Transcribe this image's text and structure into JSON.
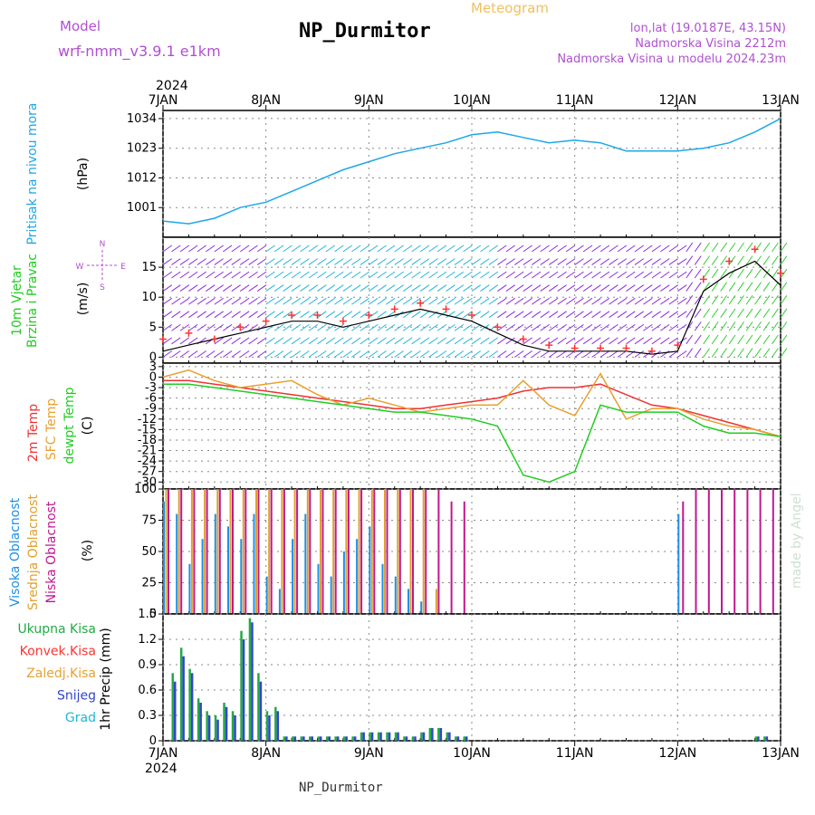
{
  "header": {
    "model_label": "Model",
    "model_name": "wrf-nmm_v3.9.1  e1km",
    "station": "NP_Durmitor",
    "product": "Meteogram",
    "coords": "lon,lat (19.0187E, 43.15N)",
    "elevation": "Nadmorska Visina 2212m",
    "model_elevation": "Nadmorska Visina u modelu 2024.23m",
    "footer_station": "NP_Durmitor",
    "watermark": "made by Angel"
  },
  "axes": {
    "year": "2024",
    "date_ticks": [
      "7JAN",
      "8JAN",
      "9JAN",
      "10JAN",
      "11JAN",
      "12JAN",
      "13JAN"
    ]
  },
  "colors": {
    "pressure": "#1ea7e6",
    "temp_2m": "#ee3333",
    "temp_sfc": "#e8a030",
    "dewpoint": "#22cc22",
    "cloud_high": "#1e90e6",
    "cloud_mid": "#e0a030",
    "cloud_low": "#c01890",
    "precip_total": "#22aa44",
    "precip_snow": "#3344cc",
    "label_purple": "#b050d0",
    "label_orange": "#f0c060",
    "gust_marker": "#ff3333"
  },
  "chart_data": [
    {
      "type": "line",
      "ylabel": [
        "Pritisak na nivou mora",
        "(hPa)"
      ],
      "yticks": [
        "1001",
        "1012",
        "1023",
        "1034"
      ],
      "ylim": [
        990,
        1037
      ],
      "series": [
        {
          "name": "Pritisak na nivou mora",
          "x": [
            0,
            6,
            12,
            18,
            24,
            30,
            36,
            42,
            48,
            54,
            60,
            66,
            72,
            78,
            84,
            90,
            96,
            102,
            108,
            114,
            120,
            126,
            132,
            138,
            144
          ],
          "values": [
            996,
            995,
            997,
            1001,
            1003,
            1007,
            1011,
            1015,
            1018,
            1021,
            1023,
            1025,
            1028,
            1029,
            1027,
            1025,
            1026,
            1025,
            1022,
            1022,
            1022,
            1023,
            1025,
            1029,
            1034
          ]
        }
      ]
    },
    {
      "type": "scatter",
      "title": "10m Vjetar Brzina i Pravac",
      "ylabel": "(m/s)",
      "yticks": [
        "0",
        "5",
        "10",
        "15"
      ],
      "ylim": [
        -1,
        20
      ],
      "compass": [
        "N",
        "E",
        "S",
        "W"
      ],
      "series": [
        {
          "name": "wind speed",
          "x": [
            0,
            6,
            12,
            18,
            24,
            30,
            36,
            42,
            48,
            54,
            60,
            66,
            72,
            78,
            84,
            90,
            96,
            102,
            108,
            114,
            120,
            126,
            132,
            138,
            144
          ],
          "values": [
            1,
            2,
            3,
            4,
            5,
            6,
            6,
            5,
            6,
            7,
            8,
            7,
            6,
            4,
            2,
            1,
            1,
            1,
            1,
            0.5,
            1,
            11,
            14,
            16,
            12
          ]
        },
        {
          "name": "gust",
          "x": [
            0,
            6,
            12,
            18,
            24,
            30,
            36,
            42,
            48,
            54,
            60,
            66,
            72,
            78,
            84,
            90,
            96,
            102,
            108,
            114,
            120,
            126,
            132,
            138,
            144
          ],
          "values": [
            3,
            4,
            3,
            5,
            6,
            7,
            7,
            6,
            7,
            8,
            9,
            8,
            7,
            5,
            3,
            2,
            1.5,
            1.5,
            1.5,
            1,
            2,
            13,
            16,
            18,
            14
          ]
        }
      ]
    },
    {
      "type": "line",
      "ylabel": [
        "2m Temp",
        "SFC Temp",
        "dewpt Temp",
        "(C)"
      ],
      "yticks": [
        "3",
        "0",
        "-3",
        "-6",
        "-9",
        "-12",
        "-15",
        "-18",
        "-21",
        "-24",
        "-27",
        "-30"
      ],
      "ylim": [
        -32,
        4
      ],
      "series": [
        {
          "name": "2m Temp",
          "x": [
            0,
            6,
            12,
            18,
            24,
            30,
            36,
            42,
            48,
            54,
            60,
            66,
            72,
            78,
            84,
            90,
            96,
            102,
            108,
            114,
            120,
            126,
            132,
            138,
            144
          ],
          "values": [
            -1,
            -1,
            -2,
            -3,
            -4,
            -5,
            -6,
            -7,
            -8,
            -9,
            -9,
            -8,
            -7,
            -6,
            -4,
            -3,
            -3,
            -2,
            -5,
            -8,
            -9,
            -11,
            -13,
            -15,
            -17
          ]
        },
        {
          "name": "SFC Temp",
          "x": [
            0,
            6,
            12,
            18,
            24,
            30,
            36,
            42,
            48,
            54,
            60,
            66,
            72,
            78,
            84,
            90,
            96,
            102,
            108,
            114,
            120,
            126,
            132,
            138,
            144
          ],
          "values": [
            0,
            2,
            -1,
            -3,
            -2,
            -1,
            -5,
            -8,
            -6,
            -8,
            -10,
            -9,
            -8,
            -8,
            -1,
            -8,
            -11,
            1,
            -12,
            -9,
            -9,
            -12,
            -14,
            -15,
            -17
          ]
        },
        {
          "name": "dewpt Temp",
          "x": [
            0,
            6,
            12,
            18,
            24,
            30,
            36,
            42,
            48,
            54,
            60,
            66,
            72,
            78,
            84,
            90,
            96,
            102,
            108,
            114,
            120,
            126,
            132,
            138,
            144
          ],
          "values": [
            -2,
            -2,
            -3,
            -4,
            -5,
            -6,
            -7,
            -8,
            -9,
            -10,
            -10,
            -11,
            -12,
            -14,
            -28,
            -30,
            -27,
            -8,
            -10,
            -10,
            -10,
            -14,
            -16,
            -16,
            -17
          ]
        }
      ]
    },
    {
      "type": "bar",
      "ylabel": [
        "Visoka Oblacnost",
        "Srednja Oblacnost",
        "Niska Oblacnost",
        "(%)"
      ],
      "yticks": [
        "0",
        "25",
        "50",
        "75",
        "100"
      ],
      "ylim": [
        0,
        100
      ],
      "series": [
        {
          "name": "Visoka Oblacnost",
          "x": [
            0,
            3,
            6,
            9,
            12,
            15,
            18,
            21,
            24,
            27,
            30,
            33,
            36,
            39,
            42,
            45,
            48,
            51,
            54,
            57,
            60,
            63,
            66,
            69,
            72,
            75,
            78,
            81,
            84,
            87,
            90,
            93,
            96,
            99,
            102,
            105,
            108,
            111,
            114,
            117,
            120,
            123,
            126,
            129,
            132,
            135,
            138,
            141,
            144
          ],
          "values": [
            90,
            80,
            40,
            60,
            80,
            70,
            60,
            80,
            30,
            20,
            60,
            80,
            40,
            30,
            50,
            60,
            70,
            40,
            30,
            20,
            10,
            0,
            0,
            0,
            0,
            0,
            0,
            0,
            0,
            0,
            0,
            0,
            0,
            0,
            0,
            0,
            0,
            0,
            0,
            0,
            80,
            0,
            0,
            0,
            0,
            0,
            0,
            0,
            0
          ]
        },
        {
          "name": "Srednja Oblacnost",
          "x": [
            0,
            3,
            6,
            9,
            12,
            15,
            18,
            21,
            24,
            27,
            30,
            33,
            36,
            39,
            42,
            45,
            48,
            51,
            54,
            57,
            60,
            63,
            66,
            69,
            72,
            75,
            78,
            81,
            84,
            87,
            90,
            93,
            96,
            99,
            102,
            105,
            108,
            111,
            114,
            117,
            120,
            123,
            126,
            129,
            132,
            135,
            138,
            141,
            144
          ],
          "values": [
            100,
            100,
            100,
            100,
            100,
            100,
            100,
            100,
            100,
            100,
            100,
            100,
            100,
            100,
            100,
            100,
            100,
            100,
            100,
            100,
            100,
            20,
            0,
            0,
            0,
            0,
            0,
            0,
            0,
            0,
            0,
            0,
            0,
            0,
            0,
            0,
            0,
            0,
            0,
            0,
            0,
            0,
            0,
            0,
            0,
            0,
            0,
            0,
            0
          ]
        },
        {
          "name": "Niska Oblacnost",
          "x": [
            0,
            3,
            6,
            9,
            12,
            15,
            18,
            21,
            24,
            27,
            30,
            33,
            36,
            39,
            42,
            45,
            48,
            51,
            54,
            57,
            60,
            63,
            66,
            69,
            72,
            75,
            78,
            81,
            84,
            87,
            90,
            93,
            96,
            99,
            102,
            105,
            108,
            111,
            114,
            117,
            120,
            123,
            126,
            129,
            132,
            135,
            138,
            141,
            144
          ],
          "values": [
            100,
            100,
            100,
            100,
            100,
            100,
            100,
            100,
            100,
            100,
            100,
            100,
            100,
            100,
            100,
            100,
            100,
            100,
            100,
            100,
            100,
            100,
            90,
            90,
            0,
            0,
            0,
            0,
            0,
            0,
            0,
            0,
            0,
            0,
            0,
            0,
            0,
            0,
            0,
            0,
            90,
            100,
            100,
            100,
            100,
            100,
            100,
            100,
            0
          ]
        }
      ]
    },
    {
      "type": "bar",
      "ylabel": "1hr Precip (mm)",
      "yticks": [
        "0",
        "0.3",
        "0.6",
        "0.9",
        "1.2",
        "1.5"
      ],
      "ylim": [
        0,
        1.5
      ],
      "legend": [
        "Ukupna Kisa",
        "Konvek.Kisa",
        "Zaledj.Kisa",
        "Snijeg",
        "Grad"
      ],
      "series": [
        {
          "name": "Ukupna Kisa",
          "x": [
            2,
            4,
            6,
            8,
            10,
            12,
            14,
            16,
            18,
            20,
            22,
            24,
            26,
            28,
            30,
            32,
            34,
            36,
            38,
            40,
            42,
            44,
            46,
            48,
            50,
            52,
            54,
            56,
            58,
            60,
            62,
            64,
            66,
            68,
            70,
            120,
            122,
            124,
            126,
            128,
            130,
            132,
            134,
            136,
            138,
            140,
            142
          ],
          "values": [
            0.8,
            1.1,
            0.85,
            0.5,
            0.35,
            0.3,
            0.45,
            0.35,
            1.3,
            1.45,
            0.8,
            0.35,
            0.4,
            0.05,
            0.05,
            0.05,
            0.05,
            0.05,
            0.05,
            0.05,
            0.05,
            0.05,
            0.1,
            0.1,
            0.1,
            0.1,
            0.1,
            0.05,
            0.05,
            0.1,
            0.15,
            0.15,
            0.1,
            0.05,
            0.05,
            0,
            0,
            0,
            0,
            0,
            0,
            0,
            0,
            0,
            0.05,
            0.05,
            0
          ]
        },
        {
          "name": "Snijeg",
          "x": [
            2,
            4,
            6,
            8,
            10,
            12,
            14,
            16,
            18,
            20,
            22,
            24,
            26,
            28,
            30,
            32,
            34,
            36,
            38,
            40,
            42,
            44,
            46,
            48,
            50,
            52,
            54,
            56,
            58,
            60,
            62,
            64,
            66,
            68,
            70,
            120,
            122,
            124,
            126,
            128,
            130,
            132,
            134,
            136,
            138,
            140,
            142
          ],
          "values": [
            0.7,
            1.0,
            0.8,
            0.45,
            0.3,
            0.25,
            0.4,
            0.3,
            1.2,
            1.4,
            0.7,
            0.3,
            0.35,
            0.05,
            0.05,
            0.05,
            0.05,
            0.05,
            0.05,
            0.05,
            0.05,
            0.05,
            0.1,
            0.1,
            0.1,
            0.1,
            0.1,
            0.05,
            0.05,
            0.1,
            0.15,
            0.15,
            0.1,
            0.05,
            0.05,
            0,
            0,
            0,
            0,
            0,
            0,
            0,
            0,
            0,
            0.05,
            0.05,
            0
          ]
        }
      ]
    }
  ]
}
